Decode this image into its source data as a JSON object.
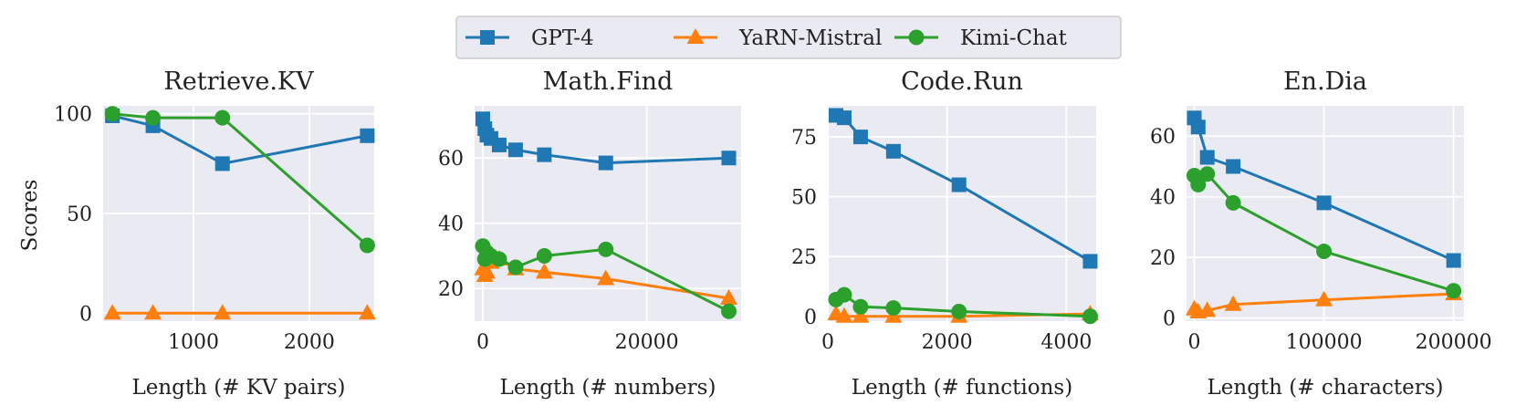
{
  "chart_data": {
    "type": "line",
    "legend": {
      "placement": "top-center",
      "entries": [
        {
          "name": "GPT-4",
          "color": "#1f77b4",
          "marker": "square"
        },
        {
          "name": "YaRN-Mistral",
          "color": "#ff7f0e",
          "marker": "triangle"
        },
        {
          "name": "Kimi-Chat",
          "color": "#2ca02c",
          "marker": "circle"
        }
      ]
    },
    "shared_ylabel": "Scores",
    "panels": [
      {
        "title": "Retrieve.KV",
        "xlabel": "Length (# KV pairs)",
        "xlim": [
          220,
          2560
        ],
        "ylim": [
          -4,
          104
        ],
        "xticks": [
          1000,
          2000
        ],
        "xtick_labels": [
          "1000",
          "2000"
        ],
        "yticks": [
          0,
          50,
          100
        ],
        "ytick_labels": [
          "0",
          "50",
          "100"
        ],
        "series": [
          {
            "name": "GPT-4",
            "x": [
              300,
              650,
              1250,
              2500
            ],
            "y": [
              99,
              94,
              75,
              89
            ]
          },
          {
            "name": "YaRN-Mistral",
            "x": [
              300,
              650,
              1250,
              2500
            ],
            "y": [
              0,
              0,
              0,
              0
            ]
          },
          {
            "name": "Kimi-Chat",
            "x": [
              300,
              650,
              1250,
              2500
            ],
            "y": [
              100,
              98,
              98,
              34
            ]
          }
        ]
      },
      {
        "title": "Math.Find",
        "xlabel": "Length (# numbers)",
        "xlim": [
          -1000,
          31500
        ],
        "ylim": [
          10,
          76
        ],
        "xticks": [
          0,
          20000
        ],
        "xtick_labels": [
          "0",
          "20000"
        ],
        "yticks": [
          20,
          40,
          60
        ],
        "ytick_labels": [
          "20",
          "40",
          "60"
        ],
        "series": [
          {
            "name": "GPT-4",
            "x": [
              0,
              250,
              500,
              1000,
              2000,
              4000,
              7500,
              15000,
              30000
            ],
            "y": [
              72,
              69,
              67,
              66,
              64,
              62.5,
              61,
              58.5,
              60
            ]
          },
          {
            "name": "YaRN-Mistral",
            "x": [
              0,
              250,
              500,
              1000,
              2000,
              4000,
              7500,
              15000,
              30000
            ],
            "y": [
              26,
              24,
              25,
              28,
              29,
              26,
              25,
              23,
              17
            ]
          },
          {
            "name": "Kimi-Chat",
            "x": [
              0,
              250,
              500,
              1000,
              2000,
              4000,
              7500,
              15000,
              30000
            ],
            "y": [
              33,
              29,
              31,
              30,
              29,
              26.5,
              30,
              32,
              13
            ]
          }
        ]
      },
      {
        "title": "Code.Run",
        "xlabel": "Length (# functions)",
        "xlim": [
          0,
          4500
        ],
        "ylim": [
          -2,
          88
        ],
        "xticks": [
          0,
          2000,
          4000
        ],
        "xtick_labels": [
          "0",
          "2000",
          "4000"
        ],
        "yticks": [
          0,
          25,
          50,
          75
        ],
        "ytick_labels": [
          "0",
          "25",
          "50",
          "75"
        ],
        "series": [
          {
            "name": "GPT-4",
            "x": [
              137,
              275,
              550,
              1100,
              2200,
              4400
            ],
            "y": [
              84,
              83,
              75,
              69,
              55,
              23
            ]
          },
          {
            "name": "YaRN-Mistral",
            "x": [
              137,
              275,
              550,
              1100,
              2200,
              4400
            ],
            "y": [
              1,
              0,
              0,
              0,
              0,
              1
            ]
          },
          {
            "name": "Kimi-Chat",
            "x": [
              137,
              275,
              550,
              1100,
              2200,
              4400
            ],
            "y": [
              7,
              9,
              4,
              3.5,
              2,
              0
            ]
          }
        ]
      },
      {
        "title": "En.Dia",
        "xlabel": "Length (# characters)",
        "xlim": [
          -6000,
          208000
        ],
        "ylim": [
          -1,
          70
        ],
        "xticks": [
          0,
          100000,
          200000
        ],
        "xtick_labels": [
          "0",
          "100000",
          "200000"
        ],
        "yticks": [
          0,
          20,
          40,
          60
        ],
        "ytick_labels": [
          "0",
          "20",
          "40",
          "60"
        ],
        "series": [
          {
            "name": "GPT-4",
            "x": [
              0,
              3000,
              10000,
              30000,
              100000,
              200000
            ],
            "y": [
              66,
              63,
              53,
              50,
              38,
              19
            ]
          },
          {
            "name": "YaRN-Mistral",
            "x": [
              0,
              3000,
              10000,
              30000,
              100000,
              200000
            ],
            "y": [
              3,
              2,
              2.5,
              4.5,
              6,
              8
            ]
          },
          {
            "name": "Kimi-Chat",
            "x": [
              0,
              3000,
              10000,
              30000,
              100000,
              200000
            ],
            "y": [
              47,
              44,
              47.5,
              38,
              22,
              9
            ]
          }
        ]
      }
    ]
  }
}
